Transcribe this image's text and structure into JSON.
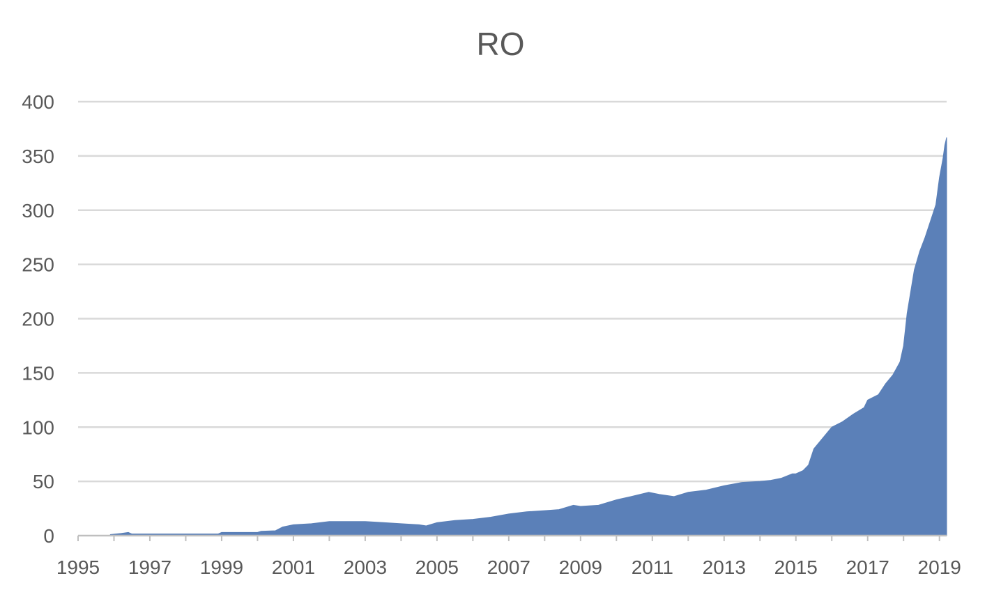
{
  "chart_data": {
    "type": "area",
    "title": "RO",
    "xlabel": "",
    "ylabel": "",
    "xlim": [
      1995,
      2019.2
    ],
    "ylim": [
      0,
      400
    ],
    "grid": true,
    "legend": "none",
    "x_ticks": [
      "1995",
      "1997",
      "1999",
      "2001",
      "2003",
      "2005",
      "2007",
      "2009",
      "2011",
      "2013",
      "2015",
      "2017",
      "2019"
    ],
    "y_ticks": [
      "0",
      "50",
      "100",
      "150",
      "200",
      "250",
      "300",
      "350",
      "400"
    ],
    "colors": {
      "fill": "#5b80b8",
      "grid": "#d9d9d9",
      "axis": "#bfbfbf",
      "text": "#595959"
    },
    "x": [
      1995.9,
      1996.2,
      1996.4,
      1996.5,
      1997,
      1998,
      1998.9,
      1999,
      2000,
      2000.1,
      2000.5,
      2000.7,
      2001,
      2001.5,
      2002,
      2002.5,
      2003,
      2003.5,
      2004,
      2004.5,
      2004.7,
      2005,
      2005.5,
      2006,
      2006.5,
      2007,
      2007.5,
      2008,
      2008.4,
      2008.8,
      2009,
      2009.5,
      2010,
      2010.4,
      2010.9,
      2011.2,
      2011.6,
      2012,
      2012.5,
      2013,
      2013.5,
      2014,
      2014.3,
      2014.6,
      2014.9,
      2015,
      2015.2,
      2015.35,
      2015.5,
      2015.75,
      2016,
      2016.3,
      2016.6,
      2016.9,
      2017,
      2017.3,
      2017.5,
      2017.7,
      2017.9,
      2018,
      2018.1,
      2018.2,
      2018.3,
      2018.45,
      2018.6,
      2018.75,
      2018.9,
      2019,
      2019.1,
      2019.15,
      2019.2
    ],
    "values": [
      1,
      2,
      3,
      1.5,
      1.5,
      1.5,
      1.5,
      3,
      3,
      4,
      4.5,
      8,
      10,
      11,
      13,
      13,
      13,
      12,
      11,
      10,
      9,
      12,
      14,
      15,
      17,
      20,
      22,
      23,
      24,
      28,
      27,
      28,
      33,
      36,
      40,
      38,
      36,
      40,
      42,
      46,
      49,
      50,
      51,
      53,
      57,
      57,
      60,
      65,
      80,
      90,
      100,
      105,
      112,
      118,
      125,
      130,
      140,
      148,
      160,
      175,
      205,
      225,
      245,
      262,
      275,
      290,
      305,
      330,
      348,
      360,
      367
    ]
  }
}
